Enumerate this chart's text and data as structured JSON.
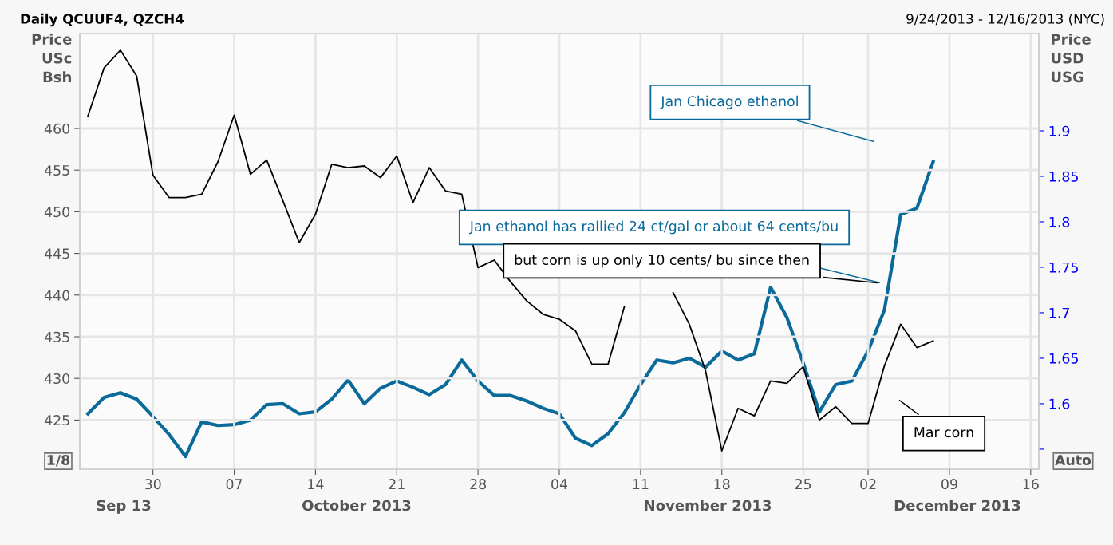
{
  "chart_data": {
    "type": "line",
    "title": "Daily QCUUF4, QZCH4",
    "ylabel": "Price\nUSc\nBsh",
    "y2label": "Price\nUSD\nUSG",
    "categories": [
      null,
      null,
      null,
      null,
      "30",
      null,
      null,
      null,
      null,
      "07",
      null,
      null,
      null,
      null,
      "14",
      null,
      null,
      null,
      null,
      "21",
      null,
      null,
      null,
      null,
      "28",
      null,
      null,
      null,
      null,
      "04",
      null,
      null,
      null,
      null,
      "11",
      null,
      null,
      null,
      null,
      "18",
      null,
      null,
      null,
      null,
      "25",
      null,
      null,
      null,
      "02",
      null,
      null,
      null,
      null,
      "09",
      null,
      null,
      null,
      null,
      "16"
    ],
    "series": [
      {
        "color": "#000000",
        "values": [
          461.5,
          467.3,
          469.4,
          466.3,
          454.4,
          451.7,
          451.7,
          452.1,
          456.0,
          461.6,
          454.5,
          456.2,
          451.3,
          446.3,
          449.7,
          455.7,
          455.3,
          455.5,
          454.1,
          456.7,
          451.1,
          455.3,
          452.5,
          452.1,
          443.3,
          444.2,
          441.6,
          439.3,
          437.7,
          437.1,
          435.7,
          431.7,
          431.7,
          438.6,
          null,
          null,
          440.3,
          436.5,
          430.9,
          421.3,
          426.4,
          425.5,
          429.7,
          429.4,
          431.4,
          425.0,
          426.6,
          424.6,
          424.6,
          431.5,
          436.5,
          433.7,
          434.5,
          null,
          null,
          null,
          null,
          null,
          null
        ]
      },
      {
        "color": "#0a6a9a",
        "axis": "y2",
        "values": [
          1.589,
          1.607,
          1.612,
          1.605,
          1.586,
          1.566,
          1.542,
          1.58,
          1.576,
          1.577,
          1.582,
          1.599,
          1.6,
          1.589,
          1.591,
          1.605,
          1.626,
          1.6,
          1.617,
          1.625,
          1.618,
          1.61,
          1.621,
          1.648,
          1.625,
          1.609,
          1.609,
          1.603,
          1.595,
          1.589,
          1.562,
          1.554,
          1.567,
          1.59,
          1.621,
          1.648,
          1.645,
          1.65,
          1.64,
          1.658,
          1.648,
          1.655,
          1.728,
          1.695,
          1.645,
          1.591,
          1.621,
          1.625,
          1.658,
          1.703,
          1.808,
          1.815,
          1.866,
          null,
          null,
          null,
          null,
          null,
          null
        ]
      }
    ],
    "ylim": [
      419.1,
      471.4
    ],
    "yticks": [
      425,
      430,
      435,
      440,
      445,
      450,
      455,
      460
    ],
    "y2lim": [
      1.528,
      2.007
    ],
    "y2ticks": [
      {
        "value": 1.55,
        "label": null
      },
      1.6,
      1.65,
      1.7,
      1.75,
      1.8,
      1.85,
      1.9
    ],
    "grid": true,
    "legend": false,
    "line_style": "solid",
    "marker": "none",
    "annotations": [
      "Jan Chicago ethanol",
      "Jan ethanol has rallied 24 ct/gal or about 64 cents/bu",
      "but corn is up only 10 cents/ bu since then",
      "Mar corn",
      "9/24/2013 - 12/16/2013 (NYC)",
      "Sep 13",
      "October 2013",
      "November 2013",
      "December 2013",
      "1/8",
      "Auto"
    ]
  }
}
